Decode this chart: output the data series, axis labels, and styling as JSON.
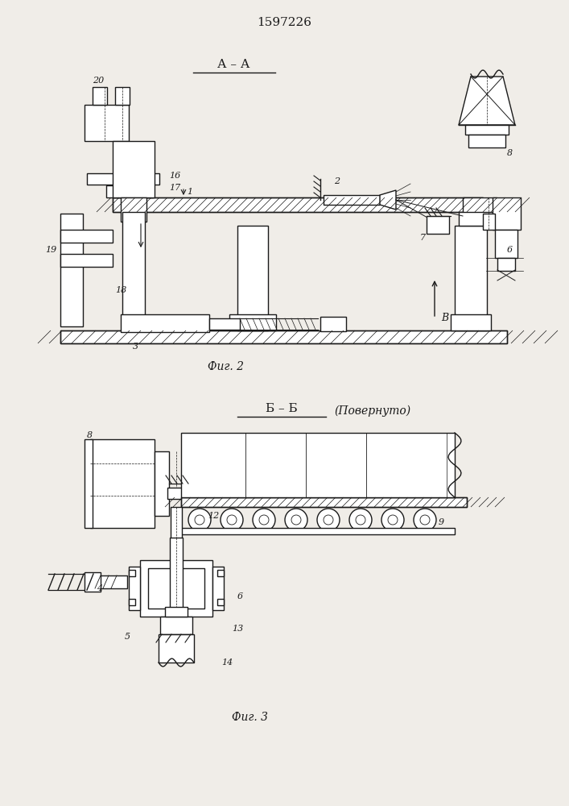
{
  "title": "1597226",
  "fig2_label": "А – А",
  "fig2_caption": "Фиг. 2",
  "fig3_label": "Б – Б",
  "fig3_povern": "(Повернуто)",
  "fig3_caption": "Фиг. 3",
  "bg_color": "#f0ede8",
  "line_color": "#1a1a1a",
  "lw": 1.0,
  "tlw": 0.6
}
